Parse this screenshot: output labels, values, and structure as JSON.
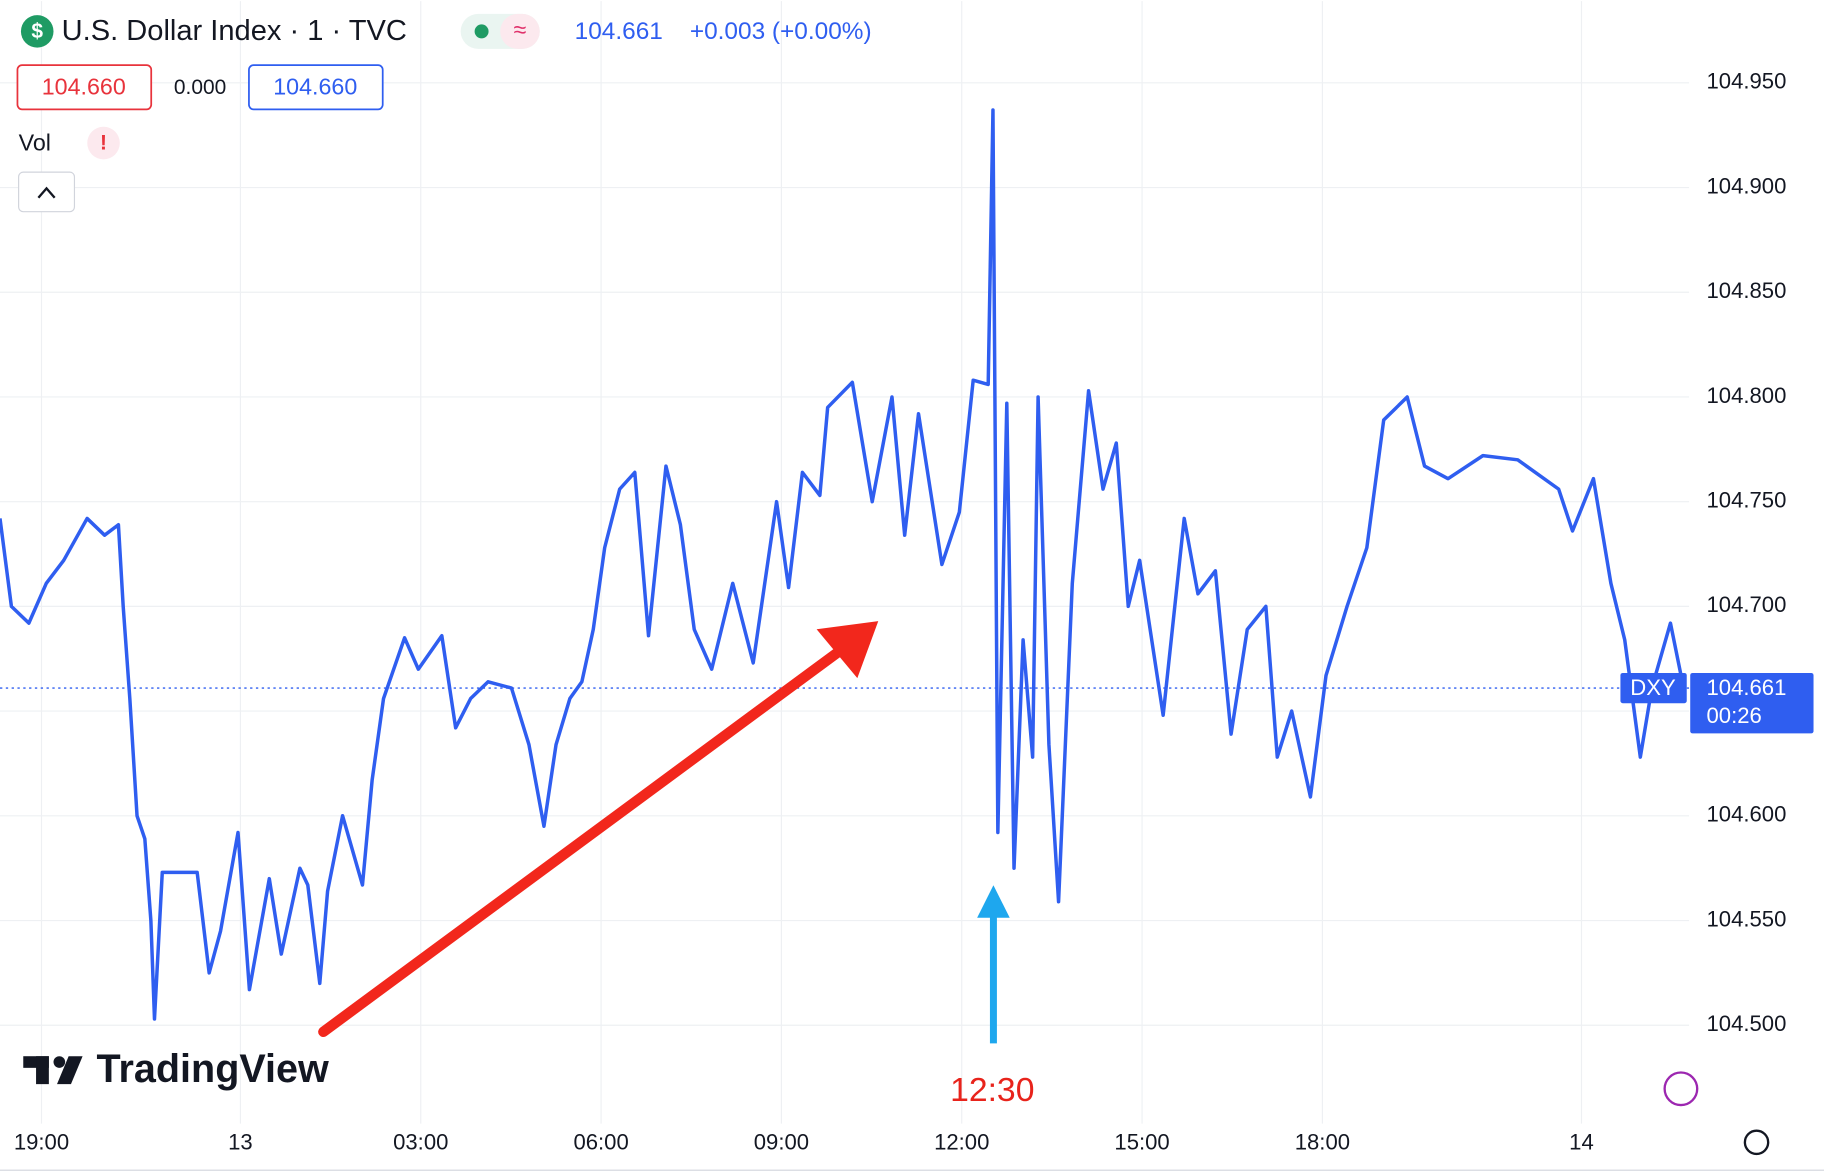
{
  "chart_data": {
    "type": "line",
    "title": "U.S. Dollar Index · 1 · TVC",
    "header_price": "104.661",
    "header_change": "+0.003 (+0.00%)",
    "bid": "104.660",
    "spread": "0.000",
    "ask": "104.660",
    "indicator": "Vol",
    "watermark": "TradingView",
    "annotation": "12:30",
    "countdown": "00:26",
    "last_price": {
      "value": 104.661,
      "label": "104.661"
    },
    "x": [
      -4.0,
      -3.81,
      -3.52,
      -3.23,
      -2.94,
      -2.55,
      -2.26,
      -2.03,
      -1.95,
      -1.84,
      -1.72,
      -1.59,
      -1.49,
      -1.43,
      -1.3,
      -1.01,
      -0.72,
      -0.52,
      -0.33,
      -0.04,
      0.15,
      0.48,
      0.68,
      0.99,
      1.12,
      1.32,
      1.45,
      1.7,
      2.03,
      2.19,
      2.38,
      2.73,
      2.96,
      3.35,
      3.58,
      3.83,
      4.12,
      4.51,
      4.8,
      5.05,
      5.25,
      5.48,
      5.68,
      5.87,
      6.06,
      6.31,
      6.56,
      6.79,
      7.08,
      7.32,
      7.55,
      7.84,
      8.19,
      8.53,
      8.92,
      9.12,
      9.35,
      9.64,
      9.77,
      10.18,
      10.51,
      10.84,
      11.05,
      11.28,
      11.67,
      11.96,
      12.19,
      12.44,
      12.52,
      12.6,
      12.75,
      12.87,
      13.02,
      13.18,
      13.27,
      13.45,
      13.61,
      13.84,
      14.11,
      14.35,
      14.57,
      14.77,
      14.96,
      15.35,
      15.7,
      15.93,
      16.22,
      16.48,
      16.75,
      17.06,
      17.25,
      17.49,
      17.8,
      18.06,
      18.41,
      18.74,
      19.02,
      19.41,
      19.7,
      20.09,
      20.67,
      21.25,
      21.93,
      22.16,
      22.51,
      22.8,
      23.03,
      23.29,
      23.48,
      23.79,
      24.01
    ],
    "series": [
      {
        "name": "DXY",
        "color": "#2f5ef0",
        "values": [
          104.742,
          104.7,
          104.692,
          104.711,
          104.722,
          104.742,
          104.734,
          104.739,
          104.7,
          104.656,
          104.6,
          104.589,
          104.55,
          104.503,
          104.573,
          104.573,
          104.573,
          104.525,
          104.545,
          104.592,
          104.517,
          104.57,
          104.534,
          104.575,
          104.567,
          104.52,
          104.564,
          104.6,
          104.567,
          104.617,
          104.656,
          104.685,
          104.67,
          104.686,
          104.642,
          104.656,
          104.664,
          104.661,
          104.634,
          104.595,
          104.634,
          104.656,
          104.664,
          104.689,
          104.728,
          104.756,
          104.764,
          104.686,
          104.767,
          104.739,
          104.689,
          104.67,
          104.711,
          104.673,
          104.75,
          104.709,
          104.764,
          104.753,
          104.795,
          104.807,
          104.75,
          104.8,
          104.734,
          104.792,
          104.72,
          104.745,
          104.808,
          104.806,
          104.937,
          104.592,
          104.797,
          104.575,
          104.684,
          104.628,
          104.8,
          104.634,
          104.559,
          104.711,
          104.803,
          104.756,
          104.778,
          104.7,
          104.722,
          104.648,
          104.742,
          104.706,
          104.717,
          104.639,
          104.689,
          104.7,
          104.628,
          104.65,
          104.609,
          104.667,
          104.7,
          104.728,
          104.789,
          104.8,
          104.767,
          104.761,
          104.772,
          104.77,
          104.756,
          104.736,
          104.761,
          104.711,
          104.684,
          104.628,
          104.661,
          104.692,
          104.661
        ]
      }
    ],
    "xlim": [
      -4.0,
      24.1
    ],
    "ylim": [
      104.453,
      104.989
    ],
    "xticks": [
      {
        "value": -3.31,
        "label": "19:00"
      },
      {
        "value": 0,
        "label": "13"
      },
      {
        "value": 3,
        "label": "03:00"
      },
      {
        "value": 6,
        "label": "06:00"
      },
      {
        "value": 9,
        "label": "09:00"
      },
      {
        "value": 12,
        "label": "12:00"
      },
      {
        "value": 15,
        "label": "15:00"
      },
      {
        "value": 18,
        "label": "18:00"
      },
      {
        "value": 22.31,
        "label": "14"
      }
    ],
    "yticks": [
      {
        "value": 104.5,
        "label": "104.500"
      },
      {
        "value": 104.55,
        "label": "104.550"
      },
      {
        "value": 104.6,
        "label": "104.600"
      },
      {
        "value": 104.65,
        "label": "104.650"
      },
      {
        "value": 104.7,
        "label": "104.700"
      },
      {
        "value": 104.75,
        "label": "104.750"
      },
      {
        "value": 104.8,
        "label": "104.800"
      },
      {
        "value": 104.85,
        "label": "104.850"
      },
      {
        "value": 104.9,
        "label": "104.900"
      },
      {
        "value": 104.95,
        "label": "104.950"
      }
    ],
    "grid": true
  }
}
